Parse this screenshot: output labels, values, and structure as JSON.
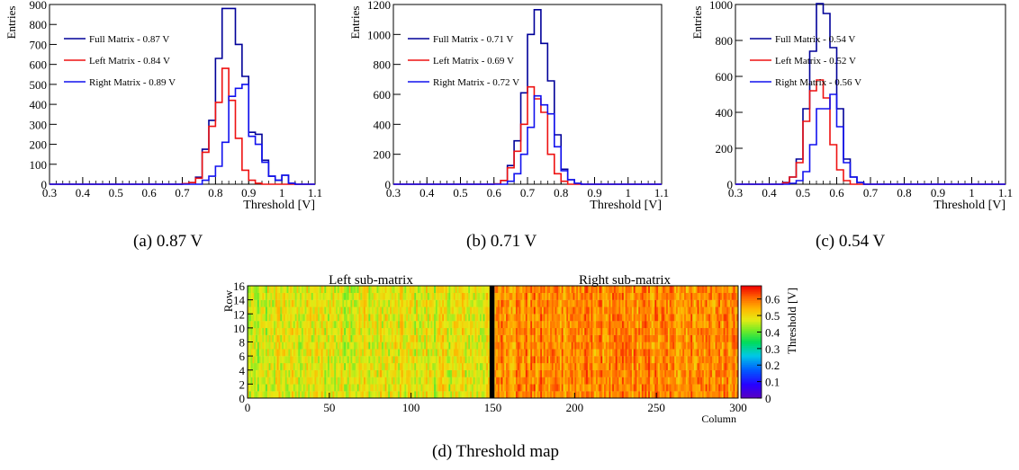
{
  "captions": {
    "a": "(a)  0.87 V",
    "b": "(b)  0.71 V",
    "c": "(c)  0.54 V",
    "d": "(d)  Threshold map"
  },
  "chart_data": [
    {
      "id": "a",
      "type": "histogram",
      "xlabel": "Threshold [V]",
      "ylabel": "Entries",
      "xlim": [
        0.3,
        1.1
      ],
      "ylim": [
        0,
        900
      ],
      "xticks": [
        0.3,
        0.4,
        0.5,
        0.6,
        0.7,
        0.8,
        0.9,
        1.0,
        1.1
      ],
      "xticklabels": [
        "0.3",
        "0.4",
        "0.5",
        "0.6",
        "0.7",
        "0.8",
        "0.9",
        "1",
        "1.1"
      ],
      "yticks": [
        0,
        100,
        200,
        300,
        400,
        500,
        600,
        700,
        800,
        900
      ],
      "bin_width": 0.02,
      "bin_start": 0.3,
      "legend": "upper-left",
      "series": [
        {
          "name": "Full Matrix - 0.87 V",
          "color": "#000099",
          "values": [
            0,
            0,
            0,
            0,
            0,
            0,
            0,
            0,
            0,
            0,
            0,
            0,
            0,
            0,
            0,
            0,
            0,
            0,
            0,
            0,
            3,
            8,
            35,
            175,
            320,
            630,
            880,
            880,
            700,
            540,
            260,
            250,
            120,
            40,
            20,
            45,
            5,
            0,
            0,
            0
          ]
        },
        {
          "name": "Left Matrix - 0.84 V",
          "color": "#ee1111",
          "values": [
            0,
            0,
            0,
            0,
            0,
            0,
            0,
            0,
            0,
            0,
            0,
            0,
            0,
            0,
            0,
            0,
            0,
            0,
            0,
            0,
            3,
            8,
            30,
            160,
            290,
            410,
            580,
            420,
            230,
            70,
            20,
            5,
            0,
            0,
            0,
            0,
            0,
            0,
            0,
            0
          ]
        },
        {
          "name": "Right Matrix - 0.89 V",
          "color": "#1111ee",
          "values": [
            0,
            0,
            0,
            0,
            0,
            0,
            0,
            0,
            0,
            0,
            0,
            0,
            0,
            0,
            0,
            0,
            0,
            0,
            0,
            0,
            0,
            0,
            0,
            20,
            40,
            90,
            210,
            440,
            480,
            500,
            240,
            200,
            110,
            40,
            20,
            45,
            5,
            0,
            0,
            0
          ]
        }
      ]
    },
    {
      "id": "b",
      "type": "histogram",
      "xlabel": "Threshold [V]",
      "ylabel": "Entries",
      "xlim": [
        0.3,
        1.1
      ],
      "ylim": [
        0,
        1200
      ],
      "xticks": [
        0.3,
        0.4,
        0.5,
        0.6,
        0.7,
        0.8,
        0.9,
        1.0,
        1.1
      ],
      "xticklabels": [
        "0.3",
        "0.4",
        "0.5",
        "0.6",
        "0.7",
        "0.8",
        "0.9",
        "1",
        "1.1"
      ],
      "yticks": [
        0,
        200,
        400,
        600,
        800,
        1000,
        1200
      ],
      "bin_width": 0.02,
      "bin_start": 0.3,
      "legend": "upper-left",
      "series": [
        {
          "name": "Full Matrix - 0.71 V",
          "color": "#000099",
          "values": [
            0,
            0,
            0,
            0,
            0,
            0,
            0,
            0,
            0,
            0,
            0,
            0,
            0,
            0,
            0,
            2,
            25,
            125,
            290,
            610,
            1000,
            1165,
            940,
            690,
            330,
            100,
            30,
            6,
            0,
            0,
            0,
            0,
            0,
            0,
            0,
            0,
            0,
            0,
            0,
            0
          ]
        },
        {
          "name": "Left Matrix - 0.69 V",
          "color": "#ee1111",
          "values": [
            0,
            0,
            0,
            0,
            0,
            0,
            0,
            0,
            0,
            0,
            0,
            0,
            0,
            0,
            0,
            2,
            25,
            110,
            220,
            400,
            650,
            570,
            480,
            200,
            70,
            20,
            0,
            0,
            0,
            0,
            0,
            0,
            0,
            0,
            0,
            0,
            0,
            0,
            0,
            0
          ]
        },
        {
          "name": "Right Matrix - 0.72 V",
          "color": "#1111ee",
          "values": [
            0,
            0,
            0,
            0,
            0,
            0,
            0,
            0,
            0,
            0,
            0,
            0,
            0,
            0,
            0,
            0,
            0,
            20,
            70,
            200,
            380,
            590,
            530,
            470,
            250,
            90,
            30,
            6,
            0,
            0,
            0,
            0,
            0,
            0,
            0,
            0,
            0,
            0,
            0,
            0
          ]
        }
      ]
    },
    {
      "id": "c",
      "type": "histogram",
      "xlabel": "Threshold [V]",
      "ylabel": "Entries",
      "xlim": [
        0.3,
        1.1
      ],
      "ylim": [
        0,
        1000
      ],
      "xticks": [
        0.3,
        0.4,
        0.5,
        0.6,
        0.7,
        0.8,
        0.9,
        1.0,
        1.1
      ],
      "xticklabels": [
        "0.3",
        "0.4",
        "0.5",
        "0.6",
        "0.7",
        "0.8",
        "0.9",
        "1",
        "1.1"
      ],
      "yticks": [
        0,
        200,
        400,
        600,
        800,
        1000
      ],
      "bin_width": 0.02,
      "bin_start": 0.3,
      "legend": "upper-left",
      "series": [
        {
          "name": "Full Matrix - 0.54 V",
          "color": "#000099",
          "values": [
            0,
            0,
            0,
            0,
            0,
            0,
            0,
            10,
            40,
            140,
            420,
            740,
            1005,
            950,
            760,
            420,
            140,
            40,
            10,
            0,
            0,
            0,
            0,
            0,
            0,
            0,
            0,
            0,
            0,
            0,
            0,
            0,
            0,
            0,
            0,
            0,
            0,
            0,
            0,
            0
          ]
        },
        {
          "name": "Left Matrix - 0.52 V",
          "color": "#ee1111",
          "values": [
            0,
            0,
            0,
            0,
            0,
            0,
            0,
            8,
            40,
            120,
            350,
            520,
            580,
            480,
            220,
            80,
            20,
            0,
            0,
            0,
            0,
            0,
            0,
            0,
            0,
            0,
            0,
            0,
            0,
            0,
            0,
            0,
            0,
            0,
            0,
            0,
            0,
            0,
            0,
            0
          ]
        },
        {
          "name": "Right Matrix - 0.56 V",
          "color": "#1111ee",
          "values": [
            0,
            0,
            0,
            0,
            0,
            0,
            0,
            0,
            5,
            20,
            70,
            220,
            420,
            420,
            500,
            320,
            120,
            40,
            10,
            0,
            0,
            0,
            0,
            0,
            0,
            0,
            0,
            0,
            0,
            0,
            0,
            0,
            0,
            0,
            0,
            0,
            0,
            0,
            0,
            0
          ]
        }
      ]
    },
    {
      "id": "d",
      "type": "heatmap",
      "xlabel": "Column",
      "ylabel": "Row",
      "colorbar_label": "Threshold [V]",
      "xlim": [
        0,
        300
      ],
      "ylim": [
        0,
        16
      ],
      "xticks": [
        0,
        50,
        100,
        150,
        200,
        250,
        300
      ],
      "yticks": [
        0,
        2,
        4,
        6,
        8,
        10,
        12,
        14,
        16
      ],
      "colorbar_range": [
        0,
        0.68
      ],
      "colorbar_ticks": [
        0,
        0.1,
        0.2,
        0.3,
        0.4,
        0.5,
        0.6
      ],
      "annotations": [
        "Left sub-matrix",
        "Right sub-matrix"
      ],
      "grid_size": {
        "columns": 300,
        "rows": 16
      },
      "divider_column": 150,
      "left_mean": 0.48,
      "right_mean": 0.58
    }
  ]
}
